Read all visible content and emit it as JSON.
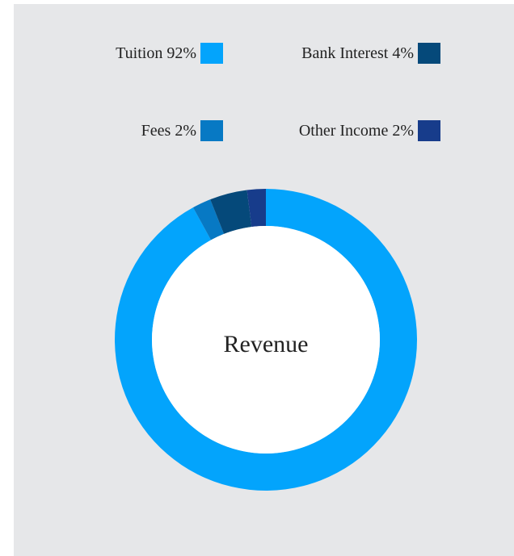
{
  "chart_data": {
    "type": "donut",
    "title": "Revenue",
    "categories": [
      "Tuition",
      "Fees",
      "Bank Interest",
      "Other Income"
    ],
    "values": [
      92,
      2,
      4,
      2
    ],
    "value_labels": [
      "92%",
      "2%",
      "4%",
      "2%"
    ],
    "colors": [
      "#03a4fc",
      "#0779c4",
      "#05497a",
      "#173c8b"
    ]
  }
}
